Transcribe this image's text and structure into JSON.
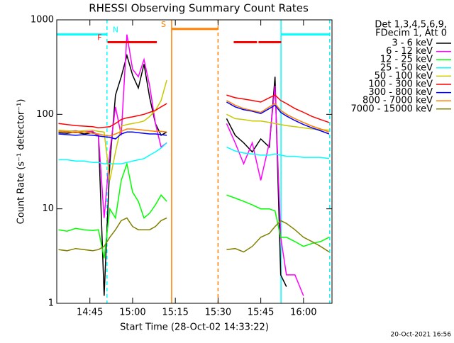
{
  "chart_data": {
    "type": "line",
    "title": "RHESSI Observing Summary Count Rates",
    "xlabel": "Start Time (28-Oct-02 14:33:22)",
    "ylabel": "Count Rate (s⁻¹ detector⁻¹)",
    "footer": "20-Oct-2021 16:56",
    "legend_header": [
      "Det 1,3,4,5,6,9,",
      "FDecim 1, Att 0"
    ],
    "log_y": true,
    "xlim": [
      873.367,
      970
    ],
    "ylim": [
      1,
      1000
    ],
    "yticks": [
      1,
      10,
      100,
      1000
    ],
    "xticks": [
      {
        "value": 885,
        "label": "14:45"
      },
      {
        "value": 900,
        "label": "15:00"
      },
      {
        "value": 915,
        "label": "15:15"
      },
      {
        "value": 930,
        "label": "15:30"
      },
      {
        "value": 945,
        "label": "15:45"
      },
      {
        "value": 960,
        "label": "16:00"
      }
    ],
    "x": [
      874,
      877,
      880,
      883,
      886,
      888,
      890,
      892,
      894,
      896,
      898,
      900,
      902,
      904,
      906,
      908,
      910,
      912,
      922,
      933,
      936,
      939,
      942,
      945,
      948,
      950,
      952,
      954,
      957,
      960,
      963,
      966,
      969
    ],
    "series": [
      {
        "name": "3 - 6 keV",
        "color": "#000000",
        "values": [
          64,
          63,
          65,
          62,
          64,
          60,
          1.2,
          30,
          160,
          250,
          420,
          260,
          190,
          340,
          150,
          80,
          60,
          65,
          null,
          90,
          60,
          50,
          40,
          55,
          45,
          250,
          2,
          1.5,
          null,
          null,
          null,
          null,
          null
        ]
      },
      {
        "name": "6 - 12 keV",
        "color": "#ff00ff",
        "values": [
          68,
          66,
          67,
          65,
          66,
          60,
          8,
          40,
          120,
          60,
          700,
          300,
          250,
          380,
          200,
          80,
          45,
          50,
          null,
          80,
          50,
          30,
          50,
          20,
          50,
          200,
          5,
          2,
          2,
          1.2,
          null,
          null,
          null
        ]
      },
      {
        "name": "12 - 25 keV",
        "color": "#00ff00",
        "values": [
          6,
          5.8,
          6.2,
          6,
          5.9,
          6,
          3,
          10,
          8,
          20,
          30,
          15,
          12,
          8,
          9,
          11,
          14,
          12,
          null,
          14,
          13,
          12,
          11,
          10,
          10,
          9.5,
          5,
          5,
          4.5,
          4,
          4.3,
          4.5,
          5
        ]
      },
      {
        "name": "25 - 50 keV",
        "color": "#00ffff",
        "values": [
          33,
          33,
          32,
          32,
          31,
          31,
          30,
          30,
          30,
          30,
          31,
          32,
          33,
          34,
          37,
          40,
          44,
          50,
          null,
          45,
          41,
          39,
          38,
          37,
          37,
          38,
          37,
          36,
          36,
          35,
          35,
          35,
          34
        ]
      },
      {
        "name": "50 - 100 keV",
        "color": "#c8c800",
        "values": [
          68,
          67,
          66,
          67,
          68,
          66,
          65,
          20,
          40,
          75,
          78,
          80,
          82,
          85,
          95,
          110,
          140,
          230,
          null,
          100,
          90,
          88,
          85,
          85,
          82,
          80,
          78,
          76,
          74,
          72,
          70,
          69,
          68
        ]
      },
      {
        "name": "100 - 300 keV",
        "color": "#ff0000",
        "values": [
          80,
          78,
          76,
          75,
          74,
          72,
          73,
          74,
          80,
          88,
          92,
          94,
          97,
          100,
          105,
          110,
          120,
          130,
          null,
          160,
          150,
          145,
          140,
          135,
          150,
          160,
          140,
          130,
          115,
          105,
          95,
          88,
          82
        ]
      },
      {
        "name": "300 - 800 keV",
        "color": "#0000ff",
        "values": [
          62,
          61,
          60,
          61,
          60,
          59,
          58,
          57,
          55,
          62,
          65,
          65,
          64,
          63,
          62,
          62,
          61,
          60,
          null,
          135,
          120,
          112,
          108,
          102,
          115,
          125,
          105,
          96,
          86,
          78,
          72,
          67,
          62
        ]
      },
      {
        "name": "800 - 7000 keV",
        "color": "#ff8000",
        "values": [
          66,
          65,
          64,
          65,
          63,
          62,
          60,
          59,
          62,
          66,
          70,
          70,
          69,
          68,
          67,
          66,
          66,
          65,
          null,
          140,
          125,
          115,
          110,
          105,
          120,
          130,
          110,
          100,
          90,
          82,
          75,
          70,
          65
        ]
      },
      {
        "name": "7000 - 15000 keV",
        "color": "#808000",
        "values": [
          3.7,
          3.6,
          3.8,
          3.7,
          3.6,
          3.7,
          4,
          5,
          6,
          7.5,
          8,
          6.5,
          6,
          6,
          6,
          6.5,
          7.5,
          8,
          null,
          3.7,
          3.8,
          3.5,
          4,
          5,
          5.5,
          6.5,
          7.5,
          7,
          6,
          5,
          4.5,
          4,
          3.5
        ]
      }
    ],
    "flags": [
      {
        "label": "N",
        "color": "#00ffff",
        "level": 700,
        "intervals": [
          [
            873.367,
            891
          ],
          [
            952.1,
            969.2
          ]
        ]
      },
      {
        "label": "F",
        "color": "#ff0000",
        "level": 580,
        "intervals": [
          [
            891.2,
            908.5
          ],
          [
            935.5,
            943.7
          ],
          [
            944.2,
            952.2
          ]
        ]
      },
      {
        "label": "S",
        "color": "#ff8000",
        "level": 800,
        "intervals": [
          [
            913.7,
            930
          ]
        ]
      }
    ],
    "vlines": [
      {
        "x": 891,
        "color": "#00ffff",
        "dashed": true
      },
      {
        "x": 913.7,
        "color": "#ff8000",
        "dashed": false
      },
      {
        "x": 930,
        "color": "#ff8000",
        "dashed": true
      },
      {
        "x": 952.1,
        "color": "#00ffff",
        "dashed": false
      },
      {
        "x": 969.2,
        "color": "#00ffff",
        "dashed": true
      }
    ]
  }
}
